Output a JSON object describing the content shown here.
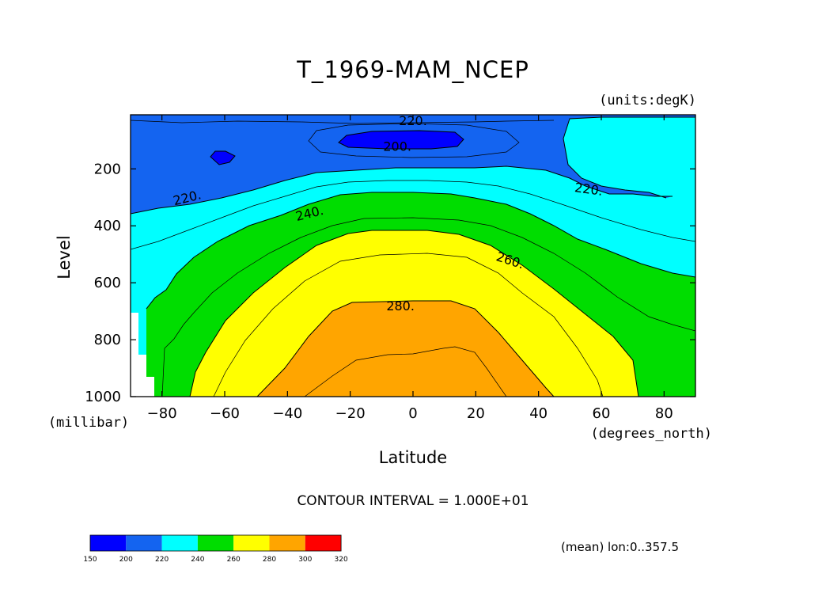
{
  "chart_data": {
    "type": "contour",
    "title": "T_1969-MAM_NCEP",
    "units_label": "(units:degK)",
    "xlabel": "Latitude",
    "ylabel": "Level",
    "x_units_label": "(degrees_north)",
    "y_units_label": "(millibar)",
    "xlim": [
      -90,
      90
    ],
    "ylim": [
      1000,
      10
    ],
    "x_ticks": [
      "-80",
      "-60",
      "-40",
      "-20",
      "0",
      "20",
      "40",
      "60",
      "80"
    ],
    "x_tick_values": [
      -80,
      -60,
      -40,
      -20,
      0,
      20,
      40,
      60,
      80
    ],
    "y_ticks": [
      "200",
      "400",
      "600",
      "800",
      "1000"
    ],
    "y_tick_values": [
      200,
      400,
      600,
      800,
      1000
    ],
    "contour_labels": [
      {
        "text": "220.",
        "lat": 0,
        "lev": 30
      },
      {
        "text": "200.",
        "lat": -5,
        "lev": 120
      },
      {
        "text": "220.",
        "lat": -72,
        "lev": 300
      },
      {
        "text": "220.",
        "lat": 56,
        "lev": 270
      },
      {
        "text": "240.",
        "lat": -33,
        "lev": 355
      },
      {
        "text": "260.",
        "lat": 31,
        "lev": 520
      },
      {
        "text": "280.",
        "lat": -4,
        "lev": 680
      }
    ],
    "regions": [
      {
        "range": "200-220",
        "color": "#1464f0",
        "outline": [
          [
            -90,
            10
          ],
          [
            90,
            10
          ],
          [
            90,
            300
          ],
          [
            -90,
            300
          ]
        ]
      },
      {
        "range": "150-200",
        "color": "#0000ff",
        "outline": [
          [
            -26,
            100
          ],
          [
            -22,
            80
          ],
          [
            20,
            70
          ],
          [
            26,
            100
          ],
          [
            20,
            125
          ],
          [
            -22,
            120
          ]
        ]
      },
      {
        "range": "150-200",
        "color": "#0000ff",
        "outline": [
          [
            -60,
            185
          ],
          [
            -64,
            165
          ],
          [
            -58,
            150
          ],
          [
            -53,
            165
          ],
          [
            -57,
            185
          ]
        ]
      }
    ],
    "contour_interval_text": "CONTOUR INTERVAL = 1.000E+01",
    "colorbar": {
      "levels": [
        "150",
        "200",
        "220",
        "240",
        "260",
        "280",
        "300",
        "320"
      ],
      "colors": [
        "#0000ff",
        "#1464f0",
        "#00ffff",
        "#00dd00",
        "#ffff00",
        "#ffa500",
        "#ff0000"
      ]
    },
    "footnote": "(mean) lon:0..357.5"
  }
}
